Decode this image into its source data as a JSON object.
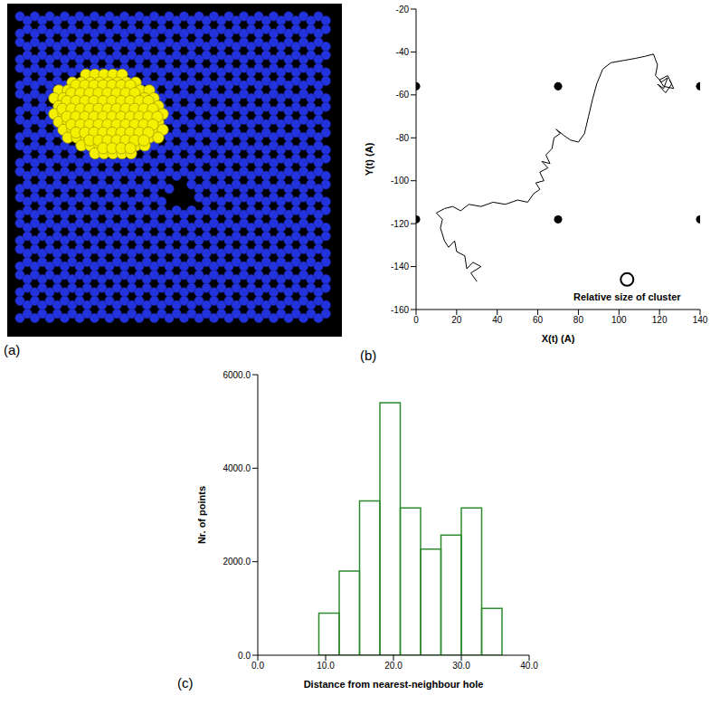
{
  "chart_data": [
    {
      "type": "image",
      "label": "(a)"
    },
    {
      "type": "line",
      "label": "(b)",
      "x_label": "X(t)  (A)",
      "y_label": "Y(t)  (A)",
      "xlim": [
        0,
        140
      ],
      "xticks": [
        0,
        20,
        40,
        60,
        80,
        100,
        120,
        140
      ],
      "ylim": [
        -160,
        -20
      ],
      "yticks": [
        -160,
        -140,
        -120,
        -100,
        -80,
        -60,
        -40,
        -20
      ],
      "trajectory": {
        "color": "#000000",
        "x": [
          30,
          27,
          32,
          28,
          25,
          24,
          20,
          19,
          16,
          14,
          12,
          13,
          10,
          14,
          18,
          22,
          26,
          32,
          38,
          44,
          50,
          55,
          58,
          61,
          59,
          63,
          61,
          65,
          62,
          66,
          64,
          67,
          68,
          71,
          69,
          73,
          76,
          80,
          83,
          85,
          87,
          89,
          92,
          96,
          102,
          108,
          113,
          117,
          119,
          118,
          121,
          124,
          122,
          119,
          123,
          126,
          124,
          120,
          122,
          127,
          125
        ],
        "y": [
          -147,
          -143,
          -140,
          -138,
          -141,
          -135,
          -133,
          -128,
          -131,
          -128,
          -122,
          -118,
          -115,
          -113,
          -112,
          -114,
          -111,
          -112,
          -110,
          -111,
          -109,
          -110,
          -106,
          -104,
          -101,
          -100,
          -96,
          -94,
          -91,
          -92,
          -88,
          -85,
          -80,
          -78,
          -76,
          -79,
          -81,
          -82,
          -78,
          -70,
          -62,
          -55,
          -48,
          -45,
          -44,
          -43,
          -42,
          -41,
          -46,
          -51,
          -54,
          -52,
          -57,
          -55,
          -59,
          -55,
          -51,
          -53,
          -56,
          -57,
          -53
        ]
      },
      "holes": {
        "color": "#000000",
        "x": [
          0,
          70,
          140,
          0,
          70,
          140
        ],
        "y": [
          -56,
          -56,
          -56,
          -118,
          -118,
          -118
        ]
      },
      "annotations": [
        {
          "text": "Relative size of cluster",
          "x": 104,
          "y": -146
        }
      ]
    },
    {
      "type": "histogram",
      "label": "(c)",
      "x_label": "Distance from nearest-neighbour hole",
      "y_label": "Nr. of points",
      "bins": [
        9,
        12,
        15,
        18,
        21,
        24,
        27,
        30,
        33,
        36
      ],
      "counts": [
        900,
        1800,
        3300,
        5400,
        3150,
        2270,
        2570,
        3150,
        1000
      ],
      "color": "#2e8b2e",
      "xlim": [
        0,
        40
      ],
      "xticks": [
        {
          "value": 0,
          "label": "0.0"
        },
        {
          "value": 10,
          "label": "10.0"
        },
        {
          "value": 20,
          "label": "20.0"
        },
        {
          "value": 30,
          "label": "30.0"
        },
        {
          "value": 40,
          "label": "40.0"
        }
      ],
      "ylim": [
        0,
        6000
      ],
      "yticks": [
        {
          "value": 0,
          "label": "0.0"
        },
        {
          "value": 2000,
          "label": "2000.0"
        },
        {
          "value": 4000,
          "label": "4000.0"
        },
        {
          "value": 6000,
          "label": "6000.0"
        }
      ]
    }
  ]
}
